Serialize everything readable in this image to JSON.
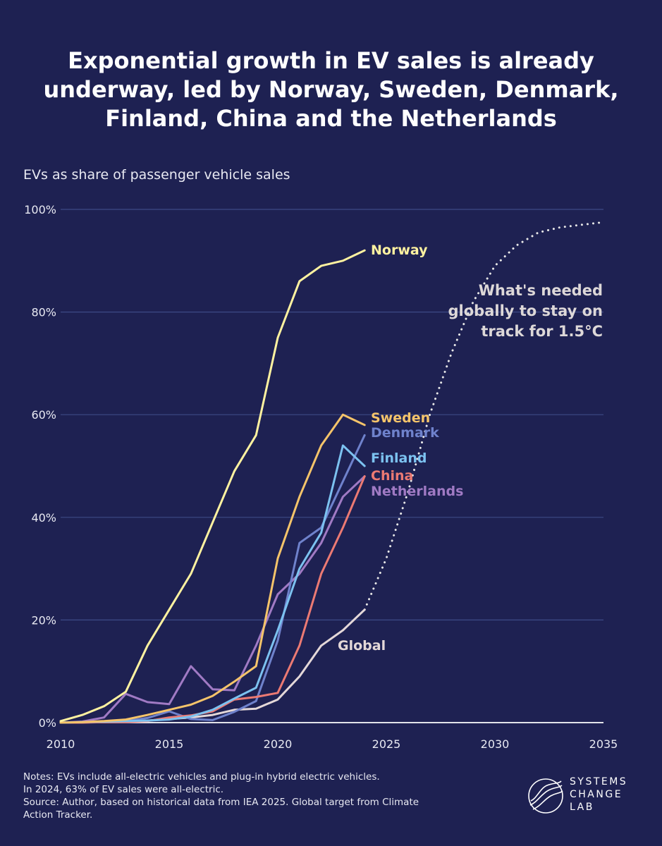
{
  "title": {
    "line1": "Exponential growth in EV sales is already",
    "line2": "underway, led by Norway, Sweden, Denmark,",
    "line3": "Finland, China and the Netherlands"
  },
  "subtitle": "EVs as share of passenger vehicle sales",
  "notes": {
    "line1": "Notes: EVs include all-electric vehicles and plug-in hybrid electric vehicles.",
    "line2": "In 2024, 63% of EV sales were all-electric.",
    "line3": "Source: Author, based on historical data from IEA 2025. Global target from Climate",
    "line4": "Action Tracker."
  },
  "logo": {
    "line1": "SYSTEMS",
    "line2": "CHANGE",
    "line3": "LAB"
  },
  "colors": {
    "background": "#1e2152",
    "gridline": "#3d4a86",
    "axis": "#ffffff",
    "norway": "#fff2a0",
    "sweden": "#f5c46a",
    "denmark": "#6f82cc",
    "finland": "#7cc2f0",
    "china": "#ec7a73",
    "netherlands": "#a07ac4",
    "global": "#e4d8d8",
    "target": "#e8e8e8",
    "annotation": "#ddd8d8"
  },
  "chart_data": {
    "type": "line",
    "xlim": [
      2010,
      2035
    ],
    "ylim": [
      0,
      100
    ],
    "x_ticks": [
      2010,
      2015,
      2020,
      2025,
      2030,
      2035
    ],
    "y_ticks": [
      0,
      20,
      40,
      60,
      80,
      100
    ],
    "y_tick_labels": [
      "0%",
      "20%",
      "40%",
      "60%",
      "80%",
      "100%"
    ],
    "grid": true,
    "series": [
      {
        "key": "global",
        "name": "Global",
        "x": [
          2010,
          2011,
          2012,
          2013,
          2014,
          2015,
          2016,
          2017,
          2018,
          2019,
          2020,
          2021,
          2022,
          2023,
          2024
        ],
        "y": [
          0,
          0.1,
          0.1,
          0.2,
          0.4,
          0.7,
          1.0,
          1.5,
          2.5,
          2.7,
          4.5,
          9.0,
          15,
          18,
          22
        ]
      },
      {
        "key": "netherlands",
        "name": "Netherlands",
        "x": [
          2010,
          2011,
          2012,
          2013,
          2014,
          2015,
          2016,
          2017,
          2018,
          2019,
          2020,
          2021,
          2022,
          2023,
          2024
        ],
        "y": [
          0,
          0.2,
          1.0,
          5.6,
          4.0,
          3.6,
          11.0,
          6.5,
          6.3,
          15,
          25,
          29,
          35,
          44,
          48
        ]
      },
      {
        "key": "denmark",
        "name": "Denmark",
        "x": [
          2010,
          2011,
          2012,
          2013,
          2014,
          2015,
          2016,
          2017,
          2018,
          2019,
          2020,
          2021,
          2022,
          2023,
          2024
        ],
        "y": [
          0,
          0.1,
          0.2,
          0.3,
          0.9,
          2.2,
          0.7,
          0.5,
          2.1,
          4.2,
          16,
          35,
          38,
          47,
          56
        ]
      },
      {
        "key": "china",
        "name": "China",
        "x": [
          2010,
          2011,
          2012,
          2013,
          2014,
          2015,
          2016,
          2017,
          2018,
          2019,
          2020,
          2021,
          2022,
          2023,
          2024
        ],
        "y": [
          0,
          0,
          0.1,
          0.1,
          0.3,
          1.0,
          1.4,
          2.2,
          4.5,
          5.0,
          5.8,
          15,
          29,
          38,
          48
        ]
      },
      {
        "key": "finland",
        "name": "Finland",
        "x": [
          2010,
          2011,
          2012,
          2013,
          2014,
          2015,
          2016,
          2017,
          2018,
          2019,
          2020,
          2021,
          2022,
          2023,
          2024
        ],
        "y": [
          0,
          0.1,
          0.2,
          0.3,
          0.4,
          0.6,
          1.2,
          2.5,
          4.7,
          6.8,
          18,
          30,
          37,
          54,
          50
        ]
      },
      {
        "key": "sweden",
        "name": "Sweden",
        "x": [
          2010,
          2011,
          2012,
          2013,
          2014,
          2015,
          2016,
          2017,
          2018,
          2019,
          2020,
          2021,
          2022,
          2023,
          2024
        ],
        "y": [
          0,
          0.1,
          0.3,
          0.6,
          1.5,
          2.5,
          3.5,
          5.2,
          8.0,
          11,
          32,
          44,
          54,
          60,
          58
        ]
      },
      {
        "key": "norway",
        "name": "Norway",
        "x": [
          2010,
          2011,
          2012,
          2013,
          2014,
          2015,
          2016,
          2017,
          2018,
          2019,
          2020,
          2021,
          2022,
          2023,
          2024
        ],
        "y": [
          0.3,
          1.5,
          3.2,
          6.0,
          15,
          22,
          29,
          39,
          49,
          56,
          75,
          86,
          89,
          90,
          92
        ]
      }
    ],
    "target": {
      "name": "What's needed globally to stay on track for 1.5°C",
      "style": "dotted",
      "x": [
        2024,
        2025,
        2026,
        2027,
        2028,
        2029,
        2030,
        2031,
        2032,
        2033,
        2034,
        2035
      ],
      "y": [
        22,
        32,
        45,
        60,
        72,
        82,
        89,
        93,
        95.5,
        96.5,
        97,
        97.5
      ]
    },
    "annotations": {
      "norway": "Norway",
      "sweden": "Sweden",
      "denmark": "Denmark",
      "finland": "Finland",
      "china": "China",
      "netherlands": "Netherlands",
      "global": "Global",
      "target_line1": "What's needed",
      "target_line2": "globally to stay on",
      "target_line3": "track for 1.5°C"
    }
  }
}
